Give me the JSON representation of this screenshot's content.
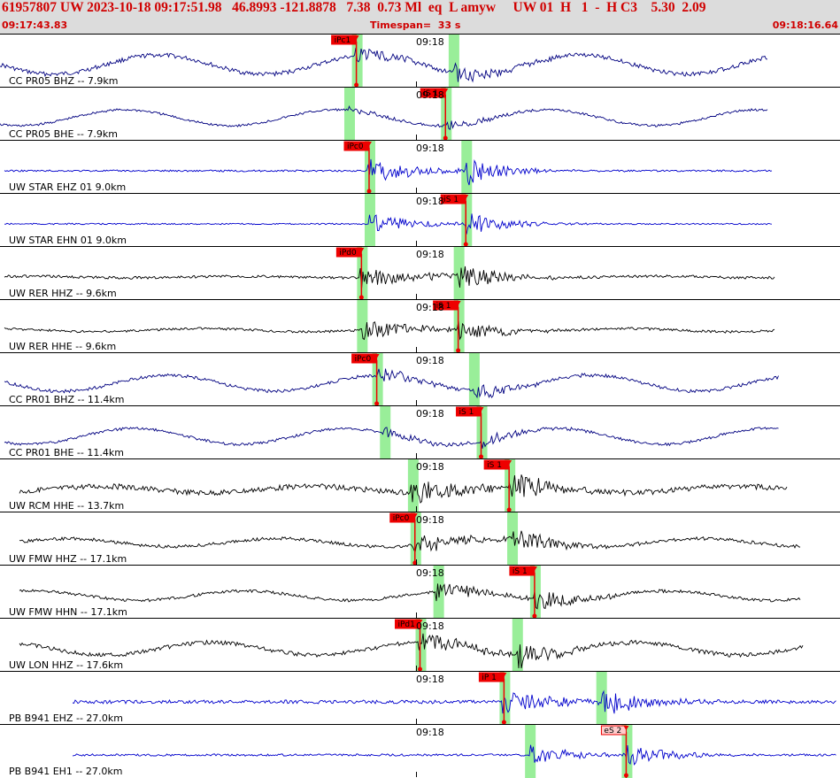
{
  "header": {
    "event_title": "61957807 UW 2023-10-18 09:17:51.98   46.8993 -121.8878   7.38  0.73 Ml  eq  L amyw     UW 01  H   1  -  H C3    5.30  2.09",
    "start_time": "09:17:43.83",
    "timespan_label": "Timespan=  33 s",
    "end_time": "09:18:16.64"
  },
  "colors": {
    "header_bg": "#dcdcdc",
    "header_text": "#d00000",
    "pick": "#ee0000",
    "window": "#99ee99",
    "trace_blue": "#0000cc",
    "trace_navy": "#000080",
    "trace_black": "#000000"
  },
  "panels": [
    {
      "label": "CC PR05 BHZ -- 7.9km",
      "time": "09:18",
      "pick": "iPc1",
      "pick_time": 14.0,
      "color": "navy",
      "hatch_pick": false
    },
    {
      "label": "CC PR05 BHE -- 7.9km",
      "time": "09:18",
      "pick": "iS 1",
      "pick_time": 17.5,
      "color": "navy",
      "hatch_pick": false
    },
    {
      "label": "UW STAR EHZ 01 9.0km",
      "time": "09:18",
      "pick": "iPc0",
      "pick_time": 14.5,
      "color": "blue",
      "hatch_pick": false
    },
    {
      "label": "UW STAR EHN 01 9.0km",
      "time": "09:18",
      "pick": "iS 1",
      "pick_time": 18.3,
      "color": "blue",
      "hatch_pick": false
    },
    {
      "label": "UW RER HHZ -- 9.6km",
      "time": "09:18",
      "pick": "iPd0",
      "pick_time": 14.2,
      "color": "black",
      "hatch_pick": false
    },
    {
      "label": "UW RER HHE -- 9.6km",
      "time": "09:18",
      "pick": "iS 1",
      "pick_time": 18.0,
      "color": "black",
      "hatch_pick": false
    },
    {
      "label": "CC PR01 BHZ -- 11.4km",
      "time": "09:18",
      "pick": "iPc0",
      "pick_time": 14.8,
      "color": "navy",
      "hatch_pick": false
    },
    {
      "label": "CC PR01 BHE -- 11.4km",
      "time": "09:18",
      "pick": "iS 1",
      "pick_time": 18.9,
      "color": "navy",
      "hatch_pick": false
    },
    {
      "label": "UW RCM HHE -- 13.7km",
      "time": "09:18",
      "pick": "iS 1",
      "pick_time": 20.0,
      "color": "black",
      "hatch_pick": false
    },
    {
      "label": "UW FMW HHZ -- 17.1km",
      "time": "09:18",
      "pick": "iPc0",
      "pick_time": 16.3,
      "color": "black",
      "hatch_pick": false
    },
    {
      "label": "UW FMW HHN -- 17.1km",
      "time": "09:18",
      "pick": "iS 1",
      "pick_time": 21.0,
      "color": "black",
      "hatch_pick": false
    },
    {
      "label": "UW LON HHZ -- 17.6km",
      "time": "09:18",
      "pick": "iPd1",
      "pick_time": 16.5,
      "color": "black",
      "hatch_pick": false
    },
    {
      "label": "PB B941 EHZ -- 27.0km",
      "time": "09:18",
      "pick": "iP 1",
      "pick_time": 19.8,
      "color": "blue",
      "hatch_pick": false
    },
    {
      "label": "PB B941 EH1 -- 27.0km",
      "time": "09:18",
      "pick": "eS 2",
      "pick_time": 24.6,
      "color": "blue",
      "hatch_pick": true
    }
  ]
}
